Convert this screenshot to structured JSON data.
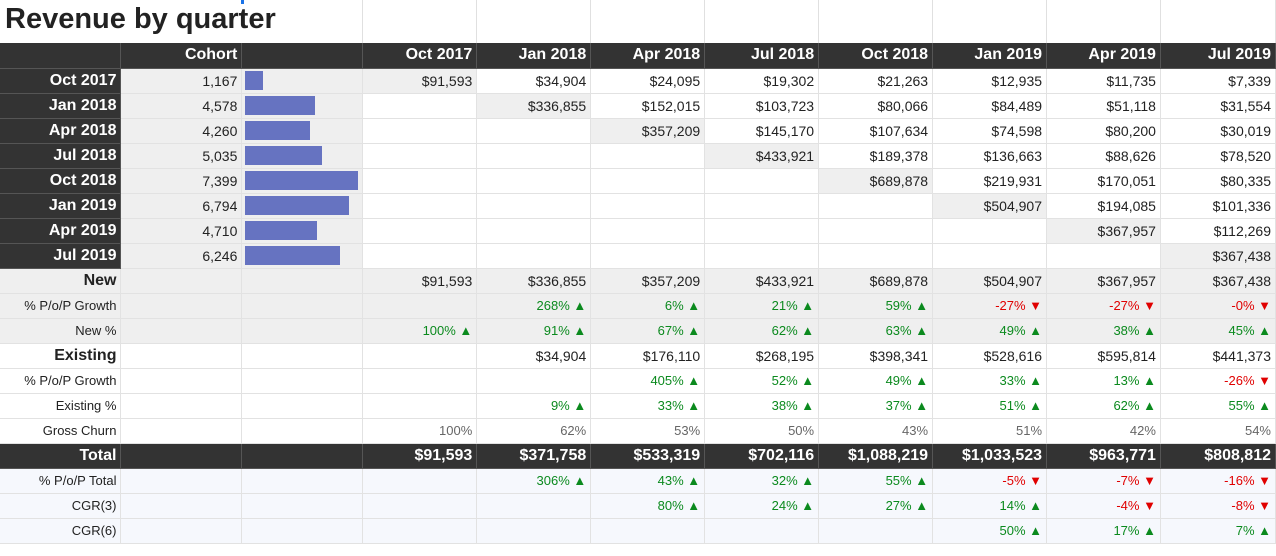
{
  "sheet": {
    "title": "Revenue by quarter",
    "colors": {
      "header_bg": "#333333",
      "bar": "#6673c1",
      "diag_bg": "#efefef",
      "positive": "#0b8a1e",
      "negative": "#e00000"
    },
    "header": {
      "cohort": "Cohort",
      "periods": [
        "Oct 2017",
        "Jan 2018",
        "Apr 2018",
        "Jul 2018",
        "Oct 2018",
        "Jan 2019",
        "Apr 2019",
        "Jul 2019"
      ]
    },
    "cohorts": [
      {
        "label": "Oct 2017",
        "count": "1,167",
        "count_value": 1167,
        "values": [
          "$91,593",
          "$34,904",
          "$24,095",
          "$19,302",
          "$21,263",
          "$12,935",
          "$11,735",
          "$7,339"
        ]
      },
      {
        "label": "Jan 2018",
        "count": "4,578",
        "count_value": 4578,
        "values": [
          "",
          "$336,855",
          "$152,015",
          "$103,723",
          "$80,066",
          "$84,489",
          "$51,118",
          "$31,554"
        ]
      },
      {
        "label": "Apr 2018",
        "count": "4,260",
        "count_value": 4260,
        "values": [
          "",
          "",
          "$357,209",
          "$145,170",
          "$107,634",
          "$74,598",
          "$80,200",
          "$30,019"
        ]
      },
      {
        "label": "Jul 2018",
        "count": "5,035",
        "count_value": 5035,
        "values": [
          "",
          "",
          "",
          "$433,921",
          "$189,378",
          "$136,663",
          "$88,626",
          "$78,520"
        ]
      },
      {
        "label": "Oct 2018",
        "count": "7,399",
        "count_value": 7399,
        "values": [
          "",
          "",
          "",
          "",
          "$689,878",
          "$219,931",
          "$170,051",
          "$80,335"
        ]
      },
      {
        "label": "Jan 2019",
        "count": "6,794",
        "count_value": 6794,
        "values": [
          "",
          "",
          "",
          "",
          "",
          "$504,907",
          "$194,085",
          "$101,336"
        ]
      },
      {
        "label": "Apr 2019",
        "count": "4,710",
        "count_value": 4710,
        "values": [
          "",
          "",
          "",
          "",
          "",
          "",
          "$367,957",
          "$112,269"
        ]
      },
      {
        "label": "Jul 2019",
        "count": "6,246",
        "count_value": 6246,
        "values": [
          "",
          "",
          "",
          "",
          "",
          "",
          "",
          "$367,438"
        ]
      }
    ],
    "bar_max": 7399,
    "summary_rows": [
      {
        "label": "New",
        "kind": "bold",
        "bg": "grey",
        "cells": [
          "$91,593",
          "$336,855",
          "$357,209",
          "$433,921",
          "$689,878",
          "$504,907",
          "$367,957",
          "$367,438"
        ],
        "signs": [
          "",
          "",
          "",
          "",
          "",
          "",
          "",
          ""
        ]
      },
      {
        "label": "% P/o/P Growth",
        "kind": "small",
        "bg": "grey",
        "cells": [
          "",
          "268% ▲",
          "6% ▲",
          "21% ▲",
          "59% ▲",
          "-27% ▼",
          "-27% ▼",
          "-0% ▼"
        ],
        "signs": [
          "",
          "pos",
          "pos",
          "pos",
          "pos",
          "neg",
          "neg",
          "neg"
        ]
      },
      {
        "label": "New %",
        "kind": "small",
        "bg": "grey",
        "cells": [
          "100% ▲",
          "91% ▲",
          "67% ▲",
          "62% ▲",
          "63% ▲",
          "49% ▲",
          "38% ▲",
          "45% ▲"
        ],
        "signs": [
          "pos",
          "pos",
          "pos",
          "pos",
          "pos",
          "pos",
          "pos",
          "pos"
        ]
      },
      {
        "label": "Existing",
        "kind": "bold",
        "bg": "",
        "cells": [
          "",
          "$34,904",
          "$176,110",
          "$268,195",
          "$398,341",
          "$528,616",
          "$595,814",
          "$441,373"
        ],
        "signs": [
          "",
          "",
          "",
          "",
          "",
          "",
          "",
          ""
        ]
      },
      {
        "label": "% P/o/P Growth",
        "kind": "small",
        "bg": "",
        "cells": [
          "",
          "",
          "405% ▲",
          "52% ▲",
          "49% ▲",
          "33% ▲",
          "13% ▲",
          "-26% ▼"
        ],
        "signs": [
          "",
          "",
          "pos",
          "pos",
          "pos",
          "pos",
          "pos",
          "neg"
        ]
      },
      {
        "label": "Existing %",
        "kind": "small",
        "bg": "",
        "cells": [
          "",
          "9% ▲",
          "33% ▲",
          "38% ▲",
          "37% ▲",
          "51% ▲",
          "62% ▲",
          "55% ▲"
        ],
        "signs": [
          "",
          "pos",
          "pos",
          "pos",
          "pos",
          "pos",
          "pos",
          "pos"
        ]
      },
      {
        "label": "Gross Churn",
        "kind": "small",
        "bg": "",
        "cells": [
          "100%",
          "62%",
          "53%",
          "50%",
          "43%",
          "51%",
          "42%",
          "54%"
        ],
        "signs": [
          "muted",
          "muted",
          "muted",
          "muted",
          "muted",
          "muted",
          "muted",
          "muted"
        ]
      },
      {
        "label": "Total",
        "kind": "total",
        "bg": "",
        "cells": [
          "$91,593",
          "$371,758",
          "$533,319",
          "$702,116",
          "$1,088,219",
          "$1,033,523",
          "$963,771",
          "$808,812"
        ],
        "signs": [
          "",
          "",
          "",
          "",
          "",
          "",
          "",
          ""
        ]
      },
      {
        "label": "% P/o/P Total",
        "kind": "small",
        "bg": "pale",
        "cells": [
          "",
          "306% ▲",
          "43% ▲",
          "32% ▲",
          "55% ▲",
          "-5% ▼",
          "-7% ▼",
          "-16% ▼"
        ],
        "signs": [
          "",
          "pos",
          "pos",
          "pos",
          "pos",
          "neg",
          "neg",
          "neg"
        ]
      },
      {
        "label": "CGR(3)",
        "kind": "small",
        "bg": "pale",
        "cells": [
          "",
          "",
          "80% ▲",
          "24% ▲",
          "27% ▲",
          "14% ▲",
          "-4% ▼",
          "-8% ▼"
        ],
        "signs": [
          "",
          "",
          "pos",
          "pos",
          "pos",
          "pos",
          "neg",
          "neg"
        ]
      },
      {
        "label": "CGR(6)",
        "kind": "small",
        "bg": "pale",
        "cells": [
          "",
          "",
          "",
          "",
          "",
          "50% ▲",
          "17% ▲",
          "7% ▲"
        ],
        "signs": [
          "",
          "",
          "",
          "",
          "",
          "pos",
          "pos",
          "pos"
        ]
      }
    ]
  }
}
